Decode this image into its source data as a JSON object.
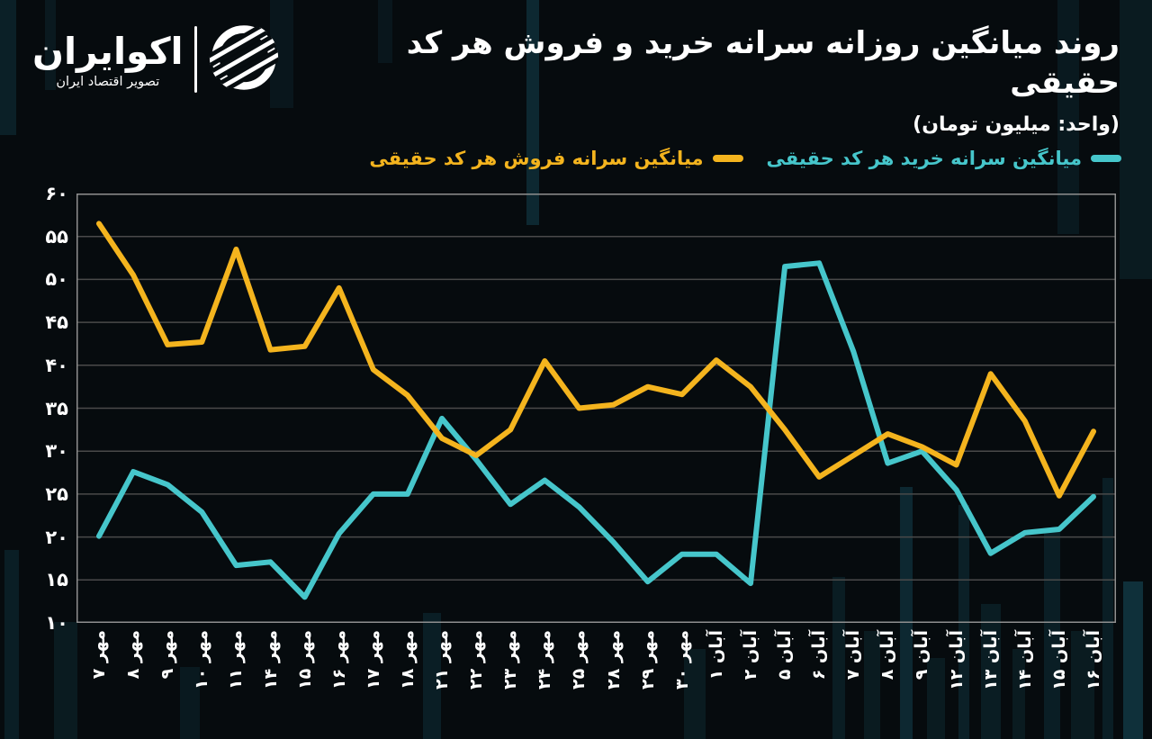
{
  "logo": {
    "name": "اکوایران",
    "tagline": "تصویر اقتصاد ایران"
  },
  "header": {
    "title": "روند میانگین روزانه سرانه خرید و فروش هر کد حقیقی",
    "unit": "(واحد: میلیون تومان)"
  },
  "legend": {
    "items": [
      {
        "id": "buy",
        "label": "میانگین سرانه خرید هر کد حقیقی",
        "color": "#46c6cb"
      },
      {
        "id": "sell",
        "label": "میانگین سرانه فروش هر کد حقیقی",
        "color": "#f4b41e"
      }
    ]
  },
  "chart_data": {
    "type": "line",
    "title": "روند میانگین روزانه سرانه خرید و فروش هر کد حقیقی",
    "unit_label": "میلیون تومان",
    "categories": [
      "مهر ۷",
      "مهر ۸",
      "مهر ۹",
      "مهر ۱۰",
      "مهر ۱۱",
      "مهر ۱۴",
      "مهر ۱۵",
      "مهر ۱۶",
      "مهر ۱۷",
      "مهر ۱۸",
      "مهر ۲۱",
      "مهر ۲۲",
      "مهر ۲۳",
      "مهر ۲۴",
      "مهر ۲۵",
      "مهر ۲۸",
      "مهر ۲۹",
      "مهر ۳۰",
      "آبان ۱",
      "آبان ۲",
      "آبان ۵",
      "آبان ۶",
      "آبان ۷",
      "آبان ۸",
      "آبان ۹",
      "آبان ۱۲",
      "آبان ۱۳",
      "آبان ۱۴",
      "آبان ۱۵",
      "آبان ۱۶"
    ],
    "series": [
      {
        "id": "buy",
        "name": "میانگین سرانه خرید هر کد حقیقی",
        "color": "#46c6cb",
        "values": [
          20.1,
          27.6,
          26.1,
          22.9,
          16.7,
          17.1,
          13.0,
          20.4,
          25.0,
          25.0,
          33.8,
          29.0,
          23.8,
          26.6,
          23.5,
          19.4,
          14.8,
          18.0,
          18.0,
          14.6,
          51.5,
          51.9,
          41.6,
          28.6,
          30.0,
          25.5,
          18.1,
          20.5,
          20.9,
          24.7
        ]
      },
      {
        "id": "sell",
        "name": "میانگین سرانه فروش هر کد حقیقی",
        "color": "#f4b41e",
        "values": [
          56.5,
          50.5,
          42.4,
          42.7,
          53.5,
          41.8,
          42.2,
          49.0,
          39.5,
          36.5,
          31.5,
          29.5,
          32.5,
          40.5,
          35.0,
          35.4,
          37.5,
          36.6,
          40.6,
          37.5,
          32.5,
          27.0,
          29.5,
          32.0,
          30.5,
          28.4,
          39.0,
          33.5,
          24.8,
          32.3
        ]
      }
    ],
    "ylim": [
      10,
      60
    ],
    "y_ticks": [
      {
        "label": "۶۰",
        "value": 60
      },
      {
        "label": "۵۵",
        "value": 55
      },
      {
        "label": "۵۰",
        "value": 50
      },
      {
        "label": "۴۵",
        "value": 45
      },
      {
        "label": "۴۰",
        "value": 40
      },
      {
        "label": "۳۵",
        "value": 35
      },
      {
        "label": "۳۰",
        "value": 30
      },
      {
        "label": "۲۵",
        "value": 25
      },
      {
        "label": "۲۰",
        "value": 20
      },
      {
        "label": "۱۵",
        "value": 15
      },
      {
        "label": "۱۰",
        "value": 10
      }
    ],
    "grid": "horizontal",
    "legend_position": "top-right"
  },
  "colors": {
    "background": "#060b0e",
    "grid": "#4a4a4a",
    "axis_border": "#8f8f8f",
    "text": "#ffffff"
  }
}
